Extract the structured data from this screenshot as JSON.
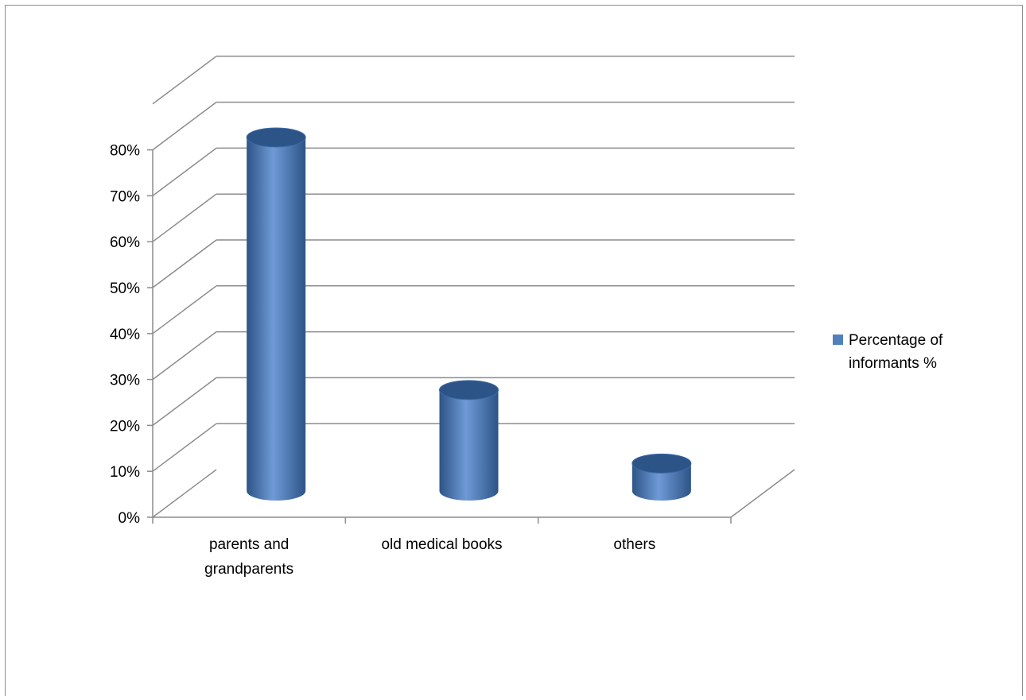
{
  "chart_data": {
    "type": "bar",
    "style": "3d-cylinder",
    "categories": [
      "parents and grandparents",
      "old medical books",
      "others"
    ],
    "category_lines": [
      [
        "parents and",
        "grandparents"
      ],
      [
        "old medical books"
      ],
      [
        "others"
      ]
    ],
    "series": [
      {
        "name": "Percentage of informants %",
        "values": [
          77,
          22,
          6
        ]
      }
    ],
    "legend": {
      "position": "right",
      "lines": [
        "Percentage of",
        "informants %"
      ]
    },
    "y_ticks": [
      "0%",
      "10%",
      "20%",
      "30%",
      "40%",
      "50%",
      "60%",
      "70%",
      "80%"
    ],
    "ylim": [
      0,
      80
    ],
    "grid": true,
    "colors": {
      "bar": "#4f81bd",
      "bar_dark": "#2d5487",
      "bar_light": "#6f9ad6",
      "grid": "#8c8c8c",
      "text": "#000000"
    }
  }
}
